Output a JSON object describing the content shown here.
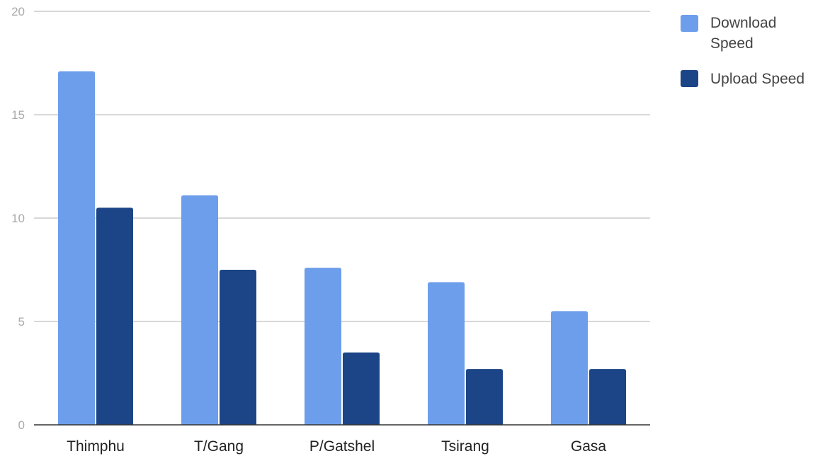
{
  "chart_data": {
    "type": "bar",
    "title": "",
    "xlabel": "",
    "ylabel": "",
    "categories": [
      "Thimphu",
      "T/Gang",
      "P/Gatshel",
      "Tsirang",
      "Gasa"
    ],
    "series": [
      {
        "name": "Download Speed",
        "color": "#6d9eeb",
        "values": [
          17.1,
          11.1,
          7.6,
          6.9,
          5.5
        ]
      },
      {
        "name": "Upload Speed",
        "color": "#1c4587",
        "values": [
          10.5,
          7.5,
          3.5,
          2.7,
          2.7
        ]
      }
    ],
    "ylim": [
      0,
      20
    ],
    "yticks": [
      0,
      5,
      10,
      15,
      20
    ],
    "ytick_labels": [
      "0",
      "5",
      "10",
      "15",
      "20"
    ],
    "grid": true,
    "legend_placement": "right"
  }
}
